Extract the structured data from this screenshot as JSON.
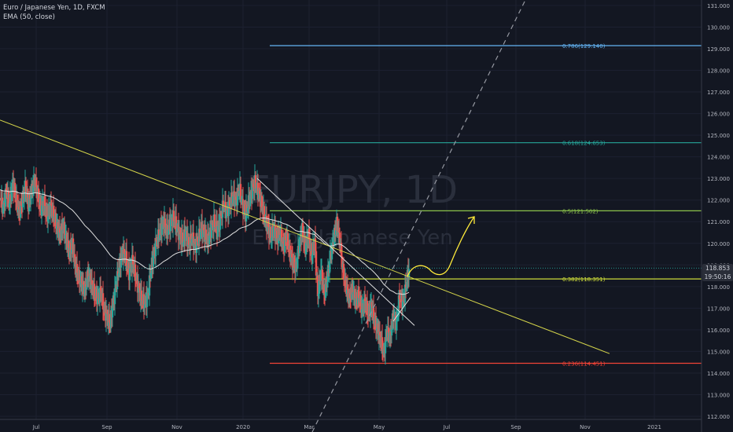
{
  "header": {
    "symbol_line": "Euro / Japanese Yen, 1D, FXCM",
    "indicator_line": "EMA (50, close)"
  },
  "watermark": {
    "symbol": "EURJPY, 1D",
    "name": "Euro / Japanese Yen"
  },
  "price_tag": {
    "price": "118.853",
    "countdown": "19:50:16"
  },
  "colors": {
    "background": "#131722",
    "up_candle": "#26a69a",
    "down_candle": "#ef5350",
    "ema": "#e0e0e0",
    "trendline": "#d4d44a",
    "projection": "#ffeb3b",
    "fib_0786": "#64b5f6",
    "fib_0618": "#26a69a",
    "fib_05": "#8bc34a",
    "fib_0382": "#cddc39",
    "fib_0236": "#f44336"
  },
  "chart_data": {
    "type": "candlestick",
    "x_ticks": [
      "Jul",
      "Sep",
      "Nov",
      "2020",
      "Mar",
      "May",
      "Jul",
      "Sep",
      "Nov",
      "2021"
    ],
    "y_ticks": [
      "112.000",
      "113.000",
      "114.000",
      "115.000",
      "116.000",
      "117.000",
      "118.000",
      "119.000",
      "120.000",
      "121.000",
      "122.000",
      "123.000",
      "124.000",
      "125.000",
      "126.000",
      "127.000",
      "128.000",
      "129.000",
      "130.000",
      "131.000"
    ],
    "ylim": [
      112,
      131.4
    ],
    "fib_levels": [
      {
        "ratio": "0.786",
        "price": 129.14,
        "label": "0.786(129.140)"
      },
      {
        "ratio": "0.618",
        "price": 124.653,
        "label": "0.618(124.653)"
      },
      {
        "ratio": "0.5",
        "price": 121.502,
        "label": "0.5(121.502)"
      },
      {
        "ratio": "0.382",
        "price": 118.351,
        "label": "0.382(118.351)"
      },
      {
        "ratio": "0.236",
        "price": 114.451,
        "label": "0.236(114.451)"
      }
    ],
    "current_price": 118.853,
    "close_path": [
      [
        0,
        122.1
      ],
      [
        4,
        121.6
      ],
      [
        8,
        122.4
      ],
      [
        12,
        121.8
      ],
      [
        16,
        122.8
      ],
      [
        20,
        122.1
      ],
      [
        24,
        121.4
      ],
      [
        28,
        121.9
      ],
      [
        32,
        122.6
      ],
      [
        36,
        121.8
      ],
      [
        40,
        122.4
      ],
      [
        44,
        122.9
      ],
      [
        48,
        122.2
      ],
      [
        52,
        121.6
      ],
      [
        56,
        121.9
      ],
      [
        60,
        121.2
      ],
      [
        64,
        121.7
      ],
      [
        68,
        121.3
      ],
      [
        72,
        120.8
      ],
      [
        76,
        120.4
      ],
      [
        80,
        120.8
      ],
      [
        84,
        120.2
      ],
      [
        88,
        119.6
      ],
      [
        92,
        119.9
      ],
      [
        96,
        118.9
      ],
      [
        100,
        118.4
      ],
      [
        104,
        118.1
      ],
      [
        108,
        117.8
      ],
      [
        112,
        118.6
      ],
      [
        116,
        118.1
      ],
      [
        120,
        117.7
      ],
      [
        124,
        117.4
      ],
      [
        128,
        117.8
      ],
      [
        132,
        116.9
      ],
      [
        136,
        116.6
      ],
      [
        140,
        116.3
      ],
      [
        144,
        117.3
      ],
      [
        148,
        118.2
      ],
      [
        152,
        119.0
      ],
      [
        156,
        119.6
      ],
      [
        160,
        119.3
      ],
      [
        164,
        118.6
      ],
      [
        168,
        119.2
      ],
      [
        172,
        118.5
      ],
      [
        176,
        117.9
      ],
      [
        180,
        117.4
      ],
      [
        184,
        117.2
      ],
      [
        188,
        117.6
      ],
      [
        192,
        118.8
      ],
      [
        196,
        119.6
      ],
      [
        200,
        120.2
      ],
      [
        204,
        120.6
      ],
      [
        208,
        121.0
      ],
      [
        212,
        120.5
      ],
      [
        216,
        120.9
      ],
      [
        220,
        121.2
      ],
      [
        224,
        120.8
      ],
      [
        228,
        120.4
      ],
      [
        232,
        120.1
      ],
      [
        236,
        120.5
      ],
      [
        240,
        119.9
      ],
      [
        244,
        120.3
      ],
      [
        248,
        119.8
      ],
      [
        252,
        120.2
      ],
      [
        256,
        120.7
      ],
      [
        260,
        120.4
      ],
      [
        264,
        120.1
      ],
      [
        268,
        120.6
      ],
      [
        272,
        121.0
      ],
      [
        276,
        120.6
      ],
      [
        280,
        121.1
      ],
      [
        284,
        121.8
      ],
      [
        288,
        121.4
      ],
      [
        292,
        121.8
      ],
      [
        296,
        122.2
      ],
      [
        300,
        121.9
      ],
      [
        304,
        122.6
      ],
      [
        308,
        121.8
      ],
      [
        312,
        121.3
      ],
      [
        316,
        121.9
      ],
      [
        320,
        122.4
      ],
      [
        324,
        122.8
      ],
      [
        328,
        122.4
      ],
      [
        332,
        121.9
      ],
      [
        336,
        121.2
      ],
      [
        340,
        120.8
      ],
      [
        344,
        120.3
      ],
      [
        348,
        120.7
      ],
      [
        352,
        120.2
      ],
      [
        356,
        120.5
      ],
      [
        360,
        119.8
      ],
      [
        364,
        120.3
      ],
      [
        368,
        119.6
      ],
      [
        372,
        119.1
      ],
      [
        376,
        118.8
      ],
      [
        380,
        119.9
      ],
      [
        384,
        120.6
      ],
      [
        388,
        119.8
      ],
      [
        392,
        120.4
      ],
      [
        396,
        119.4
      ],
      [
        400,
        120.1
      ],
      [
        404,
        117.6
      ],
      [
        408,
        118.8
      ],
      [
        412,
        117.6
      ],
      [
        416,
        118.4
      ],
      [
        420,
        119.4
      ],
      [
        424,
        120.2
      ],
      [
        428,
        120.9
      ],
      [
        432,
        120.1
      ],
      [
        436,
        118.7
      ],
      [
        440,
        118.0
      ],
      [
        444,
        117.4
      ],
      [
        448,
        117.9
      ],
      [
        452,
        117.3
      ],
      [
        456,
        117.6
      ],
      [
        460,
        116.9
      ],
      [
        464,
        117.3
      ],
      [
        468,
        116.7
      ],
      [
        472,
        117.1
      ],
      [
        476,
        116.4
      ],
      [
        480,
        116.0
      ],
      [
        484,
        115.5
      ],
      [
        488,
        114.9
      ],
      [
        492,
        116.0
      ],
      [
        496,
        115.6
      ],
      [
        500,
        116.7
      ],
      [
        504,
        116.2
      ],
      [
        508,
        117.6
      ],
      [
        512,
        117.2
      ],
      [
        516,
        118.0
      ],
      [
        520,
        118.85
      ]
    ]
  }
}
